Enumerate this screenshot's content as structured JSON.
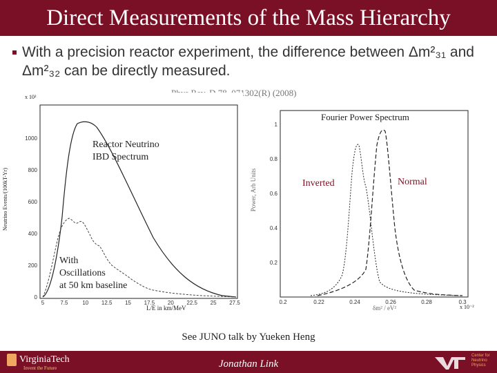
{
  "slide": {
    "title": "Direct Measurements of the Mass Hierarchy",
    "bullet": "With a precision reactor experiment, the difference between Δm²₃₁ and Δm²₃₂ can be directly measured.",
    "reference": "Phys.Rev. D 78, 071302(R) (2008)",
    "note": "See JUNO talk by Yueken Heng"
  },
  "left_plot": {
    "scale": "x 10²",
    "ylabel": "Neutrino Events/(100kT-Yr)",
    "xlabel": "L/E in km/MeV",
    "yticks": [
      "0",
      "200",
      "400",
      "600",
      "800",
      "1000"
    ],
    "xticks": [
      "5",
      "7.5",
      "10",
      "12.5",
      "15",
      "17.5",
      "20",
      "22.5",
      "25",
      "27.5"
    ],
    "label_reactor_line1": "Reactor Neutrino",
    "label_reactor_line2": "IBD Spectrum",
    "label_osc_line1": "With",
    "label_osc_line2": "Oscillations",
    "label_osc_line3": "at 50 km baseline"
  },
  "right_plot": {
    "title": "Fourier Power Spectrum",
    "ylabel": "Power, Arb Units",
    "xlabel": "δm² / eV²",
    "scale": "x 10⁻²",
    "yticks": [
      "0.2",
      "0.4",
      "0.6",
      "0.8",
      "1"
    ],
    "xticks": [
      "0.2",
      "0.22",
      "0.24",
      "0.26",
      "0.28",
      "0.3"
    ],
    "label_inverted": "Inverted",
    "label_normal": "Normal"
  },
  "footer": {
    "logo": "VirginiaTech",
    "logo_sub": "Invent the Future",
    "presenter": "Jonathan Link",
    "center_line1": "Center for",
    "center_line2": "Neutrino",
    "center_line3": "Physics"
  },
  "colors": {
    "maroon": "#7a1026",
    "orange": "#f0a860"
  }
}
